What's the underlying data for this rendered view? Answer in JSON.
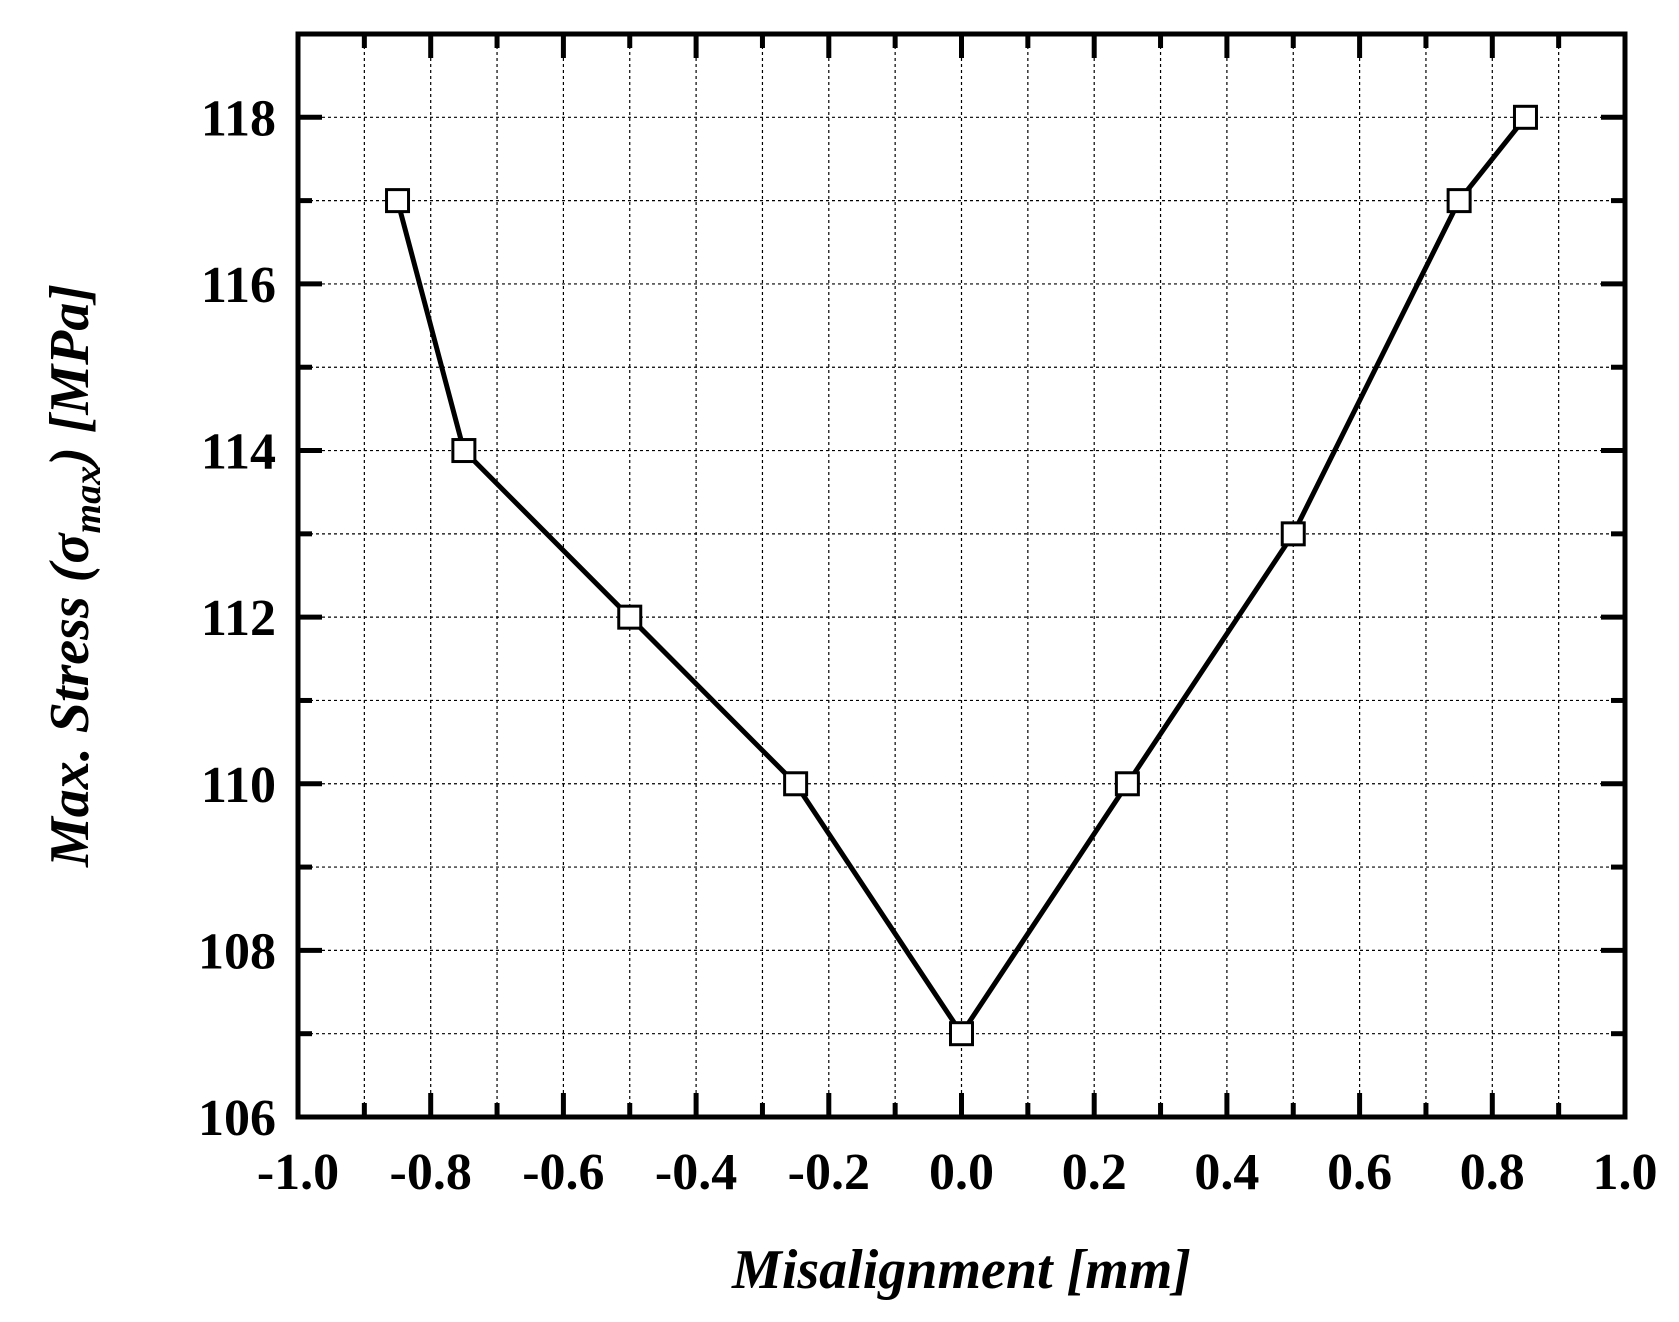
{
  "chart_data": {
    "type": "line",
    "title": "",
    "xlabel": "Misalignment [mm]",
    "ylabel": {
      "prefix": "Max. Stress (",
      "symbol": "σ",
      "subscript": "max",
      "suffix": ") [MPa]"
    },
    "xlim": [
      -1.0,
      1.0
    ],
    "ylim": [
      106,
      119
    ],
    "xticks": [
      -1.0,
      -0.8,
      -0.6,
      -0.4,
      -0.2,
      0.0,
      0.2,
      0.4,
      0.6,
      0.8,
      1.0
    ],
    "xtick_labels": [
      "-1.0",
      "-0.8",
      "-0.6",
      "-0.4",
      "-0.2",
      "0.0",
      "0.2",
      "0.4",
      "0.6",
      "0.8",
      "1.0"
    ],
    "yticks": [
      106,
      108,
      110,
      112,
      114,
      116,
      118
    ],
    "ytick_labels": [
      "106",
      "108",
      "110",
      "112",
      "114",
      "116",
      "118"
    ],
    "grid": true,
    "legend": "none",
    "series": [
      {
        "marker": "open-square",
        "color": "#000000",
        "x": [
          -0.85,
          -0.75,
          -0.5,
          -0.25,
          0.0,
          0.25,
          0.5,
          0.75,
          0.85
        ],
        "y": [
          117,
          114,
          112,
          110,
          107,
          110,
          113,
          117,
          118
        ]
      }
    ]
  }
}
